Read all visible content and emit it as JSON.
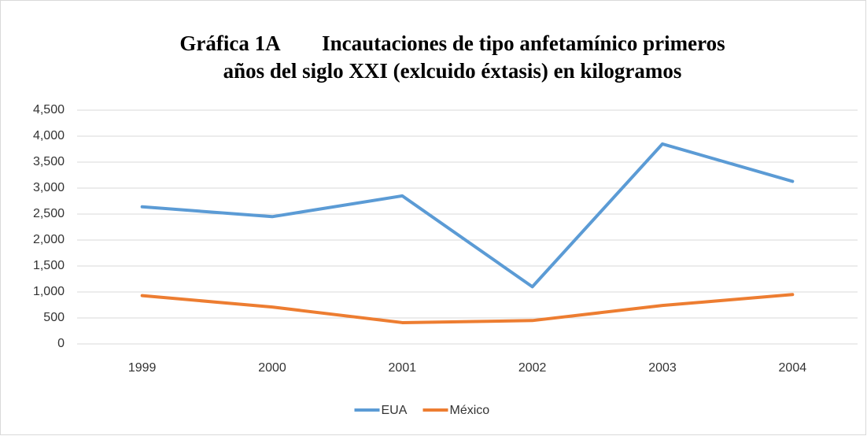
{
  "chart_data": {
    "type": "line",
    "title": [
      "Gráfica 1A        Incautaciones de tipo anfetamínico primeros",
      "años del siglo XXI (exlcuido éxtasis) en kilogramos"
    ],
    "categories": [
      "1999",
      "2000",
      "2001",
      "2002",
      "2003",
      "2004"
    ],
    "series": [
      {
        "name": "EUA",
        "color": "#5b9bd5",
        "values": [
          2640,
          2450,
          2850,
          1100,
          3850,
          3130
        ]
      },
      {
        "name": "México",
        "color": "#ed7d31",
        "values": [
          930,
          710,
          410,
          450,
          740,
          950
        ]
      }
    ],
    "ylim": [
      0,
      4500
    ],
    "yticks": [
      0,
      500,
      {
        "value": 1000,
        "label": "1,000"
      },
      {
        "value": 1500,
        "label": "1,500"
      },
      {
        "value": 2000,
        "label": "2,000"
      },
      {
        "value": 2500,
        "label": "2,500"
      },
      {
        "value": 3000,
        "label": "3,000"
      },
      {
        "value": 3500,
        "label": "3,500"
      },
      {
        "value": 4000,
        "label": "4,000"
      },
      {
        "value": 4500,
        "label": "4,500"
      }
    ],
    "grid": true,
    "legend": "bottom"
  }
}
